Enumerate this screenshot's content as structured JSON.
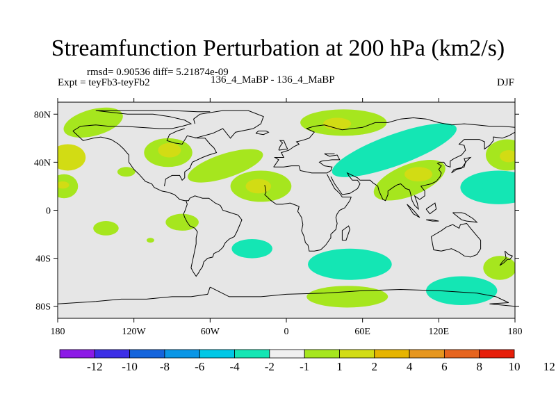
{
  "chart_data": {
    "type": "heatmap",
    "title": "Streamfunction Perturbation at 200 hPa (km2/s)",
    "stats_text": "rmsd= 0.90536 diff= 5.21874e-09",
    "experiment_text": "Expt = teyFb3-teyFb2",
    "comparison_text": "136_4_MaBP - 136_4_MaBP",
    "season": "DJF",
    "x_range": [
      -180,
      180
    ],
    "y_range": [
      -90,
      90
    ],
    "x_ticks": [
      {
        "value": -180,
        "label": "180"
      },
      {
        "value": -120,
        "label": "120W"
      },
      {
        "value": -60,
        "label": "60W"
      },
      {
        "value": 0,
        "label": "0"
      },
      {
        "value": 60,
        "label": "60E"
      },
      {
        "value": 120,
        "label": "120E"
      },
      {
        "value": 180,
        "label": "180"
      }
    ],
    "y_ticks": [
      {
        "value": 80,
        "label": "80N"
      },
      {
        "value": 40,
        "label": "40N"
      },
      {
        "value": 0,
        "label": "0"
      },
      {
        "value": -40,
        "label": "40S"
      },
      {
        "value": -80,
        "label": "80S"
      }
    ],
    "colorbar": {
      "colors": [
        "#8c1ae6",
        "#3c2ee6",
        "#1464dc",
        "#0a96e6",
        "#00c8e6",
        "#14e6b4",
        "#f0f0f0",
        "#a6e61e",
        "#d2dc14",
        "#e6b400",
        "#e6961e",
        "#e6641e",
        "#e61e0a"
      ],
      "labels": [
        "-12",
        "-10",
        "-8",
        "-6",
        "-4",
        "-2",
        "-1",
        "1",
        "2",
        "4",
        "6",
        "8",
        "10",
        "12"
      ]
    },
    "blobs": [
      {
        "level": 1,
        "lon": -152,
        "lat": 73,
        "rlon": 24,
        "rlat": 11,
        "rot": -15
      },
      {
        "level": 2,
        "lon": -172,
        "lat": 44,
        "rlon": 14,
        "rlat": 11
      },
      {
        "level": 1,
        "lon": -175,
        "lat": 20,
        "rlon": 11,
        "rlat": 10
      },
      {
        "level": 2,
        "lon": -176,
        "lat": 21,
        "rlon": 5,
        "rlat": 3
      },
      {
        "level": 1,
        "lon": -126,
        "lat": 32,
        "rlon": 7,
        "rlat": 4
      },
      {
        "level": 1,
        "lon": -93,
        "lat": 48,
        "rlon": 19,
        "rlat": 12
      },
      {
        "level": 2,
        "lon": -92,
        "lat": 50,
        "rlon": 9,
        "rlat": 6
      },
      {
        "level": 1,
        "lon": -48,
        "lat": 37,
        "rlon": 31,
        "rlat": 10,
        "rot": -18
      },
      {
        "level": 1,
        "lon": -20,
        "lat": 20,
        "rlon": 24,
        "rlat": 13
      },
      {
        "level": 2,
        "lon": -22,
        "lat": 20,
        "rlon": 10,
        "rlat": 6
      },
      {
        "level": 1,
        "lon": 45,
        "lat": 73,
        "rlon": 34,
        "rlat": 11
      },
      {
        "level": 2,
        "lon": 40,
        "lat": 72,
        "rlon": 11,
        "rlat": 5
      },
      {
        "level": -1,
        "lon": 85,
        "lat": 50,
        "rlon": 52,
        "rlat": 13,
        "rot": -20
      },
      {
        "level": 1,
        "lon": 97,
        "lat": 25,
        "rlon": 30,
        "rlat": 13,
        "rot": -22
      },
      {
        "level": 2,
        "lon": 104,
        "lat": 30,
        "rlon": 11,
        "rlat": 6
      },
      {
        "level": 1,
        "lon": 174,
        "lat": 46,
        "rlon": 17,
        "rlat": 13
      },
      {
        "level": 2,
        "lon": 175,
        "lat": 45,
        "rlon": 7,
        "rlat": 5
      },
      {
        "level": -1,
        "lon": 167,
        "lat": 19,
        "rlon": 30,
        "rlat": 14
      },
      {
        "level": -2,
        "lon": 170,
        "lat": 20,
        "rlon": 16,
        "rlat": 7
      },
      {
        "level": 1,
        "lon": -142,
        "lat": -15,
        "rlon": 10,
        "rlat": 6
      },
      {
        "level": 1,
        "lon": -82,
        "lat": -10,
        "rlon": 13,
        "rlat": 7
      },
      {
        "level": 1,
        "lon": -107,
        "lat": -25,
        "rlon": 3,
        "rlat": 2
      },
      {
        "level": -1,
        "lon": -27,
        "lat": -32,
        "rlon": 16,
        "rlat": 8
      },
      {
        "level": -1,
        "lon": 50,
        "lat": -45,
        "rlon": 33,
        "rlat": 13
      },
      {
        "level": -2,
        "lon": 47,
        "lat": -48,
        "rlon": 12,
        "rlat": 5
      },
      {
        "level": 1,
        "lon": 48,
        "lat": -72,
        "rlon": 32,
        "rlat": 9
      },
      {
        "level": -1,
        "lon": 138,
        "lat": -67,
        "rlon": 28,
        "rlat": 12
      },
      {
        "level": 1,
        "lon": 168,
        "lat": -48,
        "rlon": 13,
        "rlat": 10
      }
    ]
  }
}
